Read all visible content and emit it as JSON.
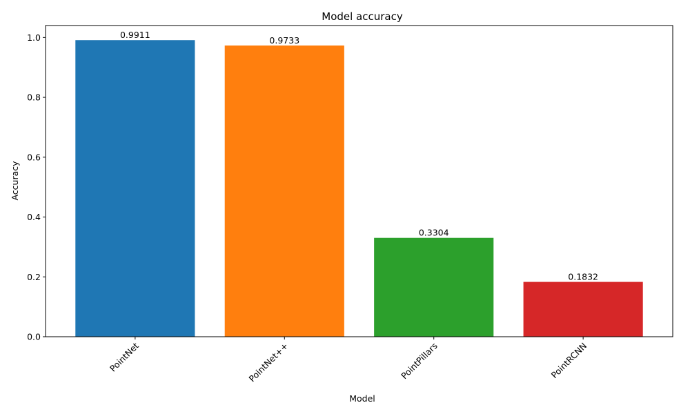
{
  "chart_data": {
    "type": "bar",
    "title": "Model accuracy",
    "xlabel": "Model",
    "ylabel": "Accuracy",
    "categories": [
      "PointNet",
      "PointNet++",
      "PointPillars",
      "PointRCNN"
    ],
    "values": [
      0.9911,
      0.9733,
      0.3304,
      0.1832
    ],
    "value_labels": [
      "0.9911",
      "0.9733",
      "0.3304",
      "0.1832"
    ],
    "colors": [
      "#1f77b4",
      "#ff7f0e",
      "#2ca02c",
      "#d62728"
    ],
    "ylim": [
      0,
      1.04
    ],
    "yticks": [
      0.0,
      0.2,
      0.4,
      0.6,
      0.8,
      1.0
    ],
    "ytick_labels": [
      "0.0",
      "0.2",
      "0.4",
      "0.6",
      "0.8",
      "1.0"
    ],
    "xtick_rotation_deg": 45,
    "grid": false,
    "legend": "none"
  }
}
